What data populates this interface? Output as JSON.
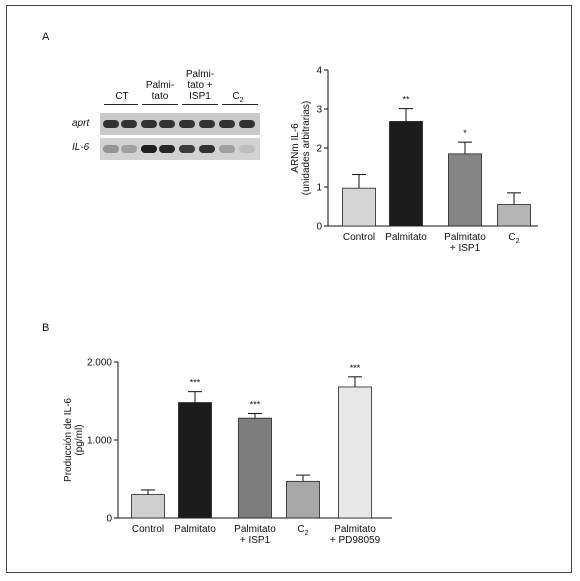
{
  "panels": {
    "a": "A",
    "b": "B"
  },
  "blot": {
    "groups": [
      "CT",
      "Palmi-\ntato",
      "Palmi-\ntato +\nISP1",
      "C2"
    ],
    "genes": [
      "aprt",
      "IL-6"
    ],
    "aprt_intensity": [
      0.85,
      0.85,
      0.85,
      0.85,
      0.85,
      0.85,
      0.85,
      0.85
    ],
    "il6_intensity": [
      0.35,
      0.3,
      0.95,
      0.9,
      0.8,
      0.85,
      0.3,
      0.15
    ]
  },
  "chart_data": [
    {
      "type": "bar",
      "categories": [
        "Control",
        "Palmitato",
        "Palmitato\n+ ISP1",
        "C2"
      ],
      "values": [
        0.97,
        2.68,
        1.85,
        0.55
      ],
      "errors": [
        0.35,
        0.33,
        0.3,
        0.3
      ],
      "significance": [
        "",
        "**",
        "*",
        ""
      ],
      "colors": [
        "#d5d5d5",
        "#1c1c1c",
        "#858585",
        "#b5b5b5"
      ],
      "ylabel": "ARNm IL-6\n(unidades arbitrarias)",
      "ylim": [
        0,
        4
      ],
      "yticks": [
        "0",
        "1",
        "2",
        "3",
        "4"
      ]
    },
    {
      "type": "bar",
      "categories": [
        "Control",
        "Palmitato",
        "Palmitato\n+ ISP1",
        "C2",
        "Palmitato\n+ PD98059"
      ],
      "values": [
        300,
        1480,
        1280,
        470,
        1680
      ],
      "errors": [
        60,
        140,
        60,
        80,
        130
      ],
      "significance": [
        "",
        "***",
        "***",
        "",
        "***"
      ],
      "colors": [
        "#cfcfcf",
        "#1c1c1c",
        "#7d7d7d",
        "#a8a8a8",
        "#e8e8e8"
      ],
      "ylabel": "Producción de IL-6\n(pg/ml)",
      "ylim": [
        0,
        2000
      ],
      "yticks": [
        "0",
        "1.000",
        "2.000"
      ]
    }
  ]
}
